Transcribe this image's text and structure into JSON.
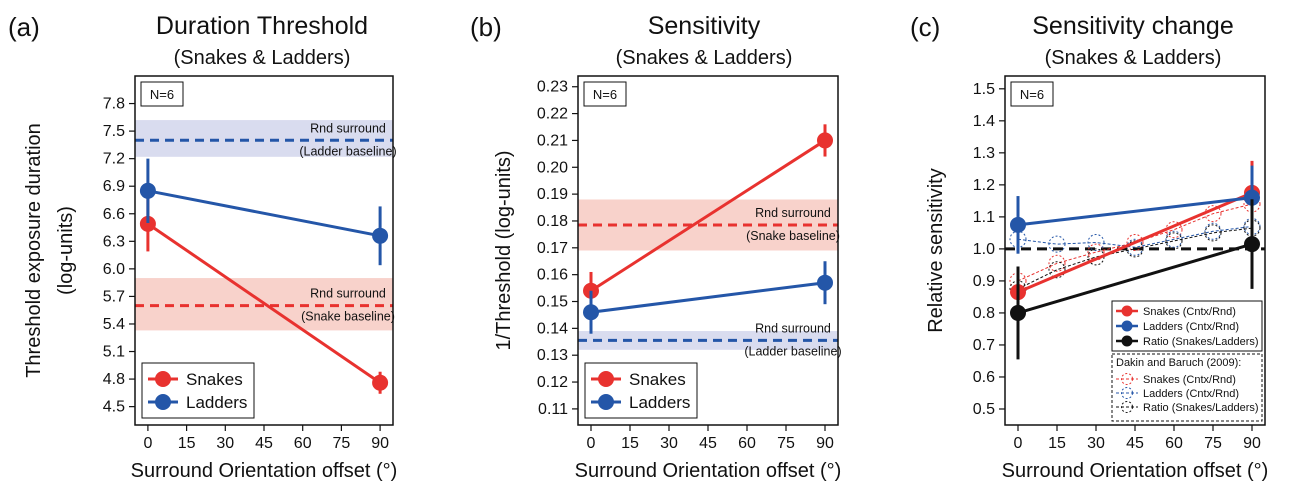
{
  "colors": {
    "red": "#e8322f",
    "blue": "#2456a8",
    "black": "#111111",
    "red_band": "#f8d2cb",
    "blue_band": "#d9dcef"
  },
  "chart_data": [
    {
      "type": "line",
      "panel_letter": "(a)",
      "title": "Duration Threshold",
      "subtitle": "(Snakes & Ladders)",
      "xlabel": "Surround Orientation offset (°)",
      "ylabel_line1": "Threshold exposure duration",
      "ylabel_line2": "(log-units)",
      "xlim": [
        -5,
        95
      ],
      "ylim": [
        4.3,
        8.1
      ],
      "x_ticks": [
        0,
        15,
        30,
        45,
        60,
        75,
        90
      ],
      "y_ticks": [
        4.5,
        4.8,
        5.1,
        5.4,
        5.7,
        6.0,
        6.3,
        6.6,
        6.9,
        7.2,
        7.5,
        7.8
      ],
      "y_decimals": 1,
      "n_label": "N=6",
      "bands": [
        {
          "color": "blue",
          "y": 7.4,
          "lo": 7.22,
          "hi": 7.62,
          "label": "Rnd surround",
          "sublabel": "(Ladder baseline)"
        },
        {
          "color": "red",
          "y": 5.6,
          "lo": 5.33,
          "hi": 5.9,
          "label": "Rnd surround",
          "sublabel": "(Snake baseline)"
        }
      ],
      "series": [
        {
          "name": "Snakes",
          "color": "red",
          "x": [
            0,
            90
          ],
          "y": [
            6.49,
            4.76
          ],
          "err": [
            0.3,
            0.12
          ]
        },
        {
          "name": "Ladders",
          "color": "blue",
          "x": [
            0,
            90
          ],
          "y": [
            6.85,
            6.36
          ],
          "err": [
            0.35,
            0.32
          ]
        }
      ],
      "legend": {
        "position": "bottom-left",
        "entries": [
          "Snakes",
          "Ladders"
        ]
      }
    },
    {
      "type": "line",
      "panel_letter": "(b)",
      "title": "Sensitivity",
      "subtitle": "(Snakes & Ladders)",
      "xlabel": "Surround Orientation offset (°)",
      "ylabel_line1": "1/Threshold (log-units)",
      "ylabel_line2": "",
      "xlim": [
        -5,
        95
      ],
      "ylim": [
        0.104,
        0.234
      ],
      "x_ticks": [
        0,
        15,
        30,
        45,
        60,
        75,
        90
      ],
      "y_ticks": [
        0.11,
        0.12,
        0.13,
        0.14,
        0.15,
        0.16,
        0.17,
        0.18,
        0.19,
        0.2,
        0.21,
        0.22,
        0.23
      ],
      "y_decimals": 2,
      "n_label": "N=6",
      "bands": [
        {
          "color": "red",
          "y": 0.1785,
          "lo": 0.169,
          "hi": 0.188,
          "label": "Rnd surround",
          "sublabel": "(Snake baseline)"
        },
        {
          "color": "blue",
          "y": 0.1355,
          "lo": 0.132,
          "hi": 0.139,
          "label": "Rnd surround",
          "sublabel": "(Ladder baseline)"
        }
      ],
      "series": [
        {
          "name": "Snakes",
          "color": "red",
          "x": [
            0,
            90
          ],
          "y": [
            0.154,
            0.21
          ],
          "err": [
            0.007,
            0.006
          ]
        },
        {
          "name": "Ladders",
          "color": "blue",
          "x": [
            0,
            90
          ],
          "y": [
            0.146,
            0.157
          ],
          "err": [
            0.008,
            0.008
          ]
        }
      ],
      "legend": {
        "position": "bottom-left",
        "entries": [
          "Snakes",
          "Ladders"
        ]
      }
    },
    {
      "type": "line",
      "panel_letter": "(c)",
      "title": "Sensitivity change",
      "subtitle": "(Snakes & Ladders)",
      "xlabel": "Surround Orientation offset (°)",
      "ylabel_line1": "Relative sensitivity",
      "ylabel_line2": "",
      "xlim": [
        -5,
        95
      ],
      "ylim": [
        0.45,
        1.54
      ],
      "x_ticks": [
        0,
        15,
        30,
        45,
        60,
        75,
        90
      ],
      "y_ticks": [
        0.5,
        0.6,
        0.7,
        0.8,
        0.9,
        1.0,
        1.1,
        1.2,
        1.3,
        1.4,
        1.5
      ],
      "y_decimals": 1,
      "n_label": "N=6",
      "reference_line": 1.0,
      "series": [
        {
          "name": "Snakes (Cntx/Rnd)",
          "color": "red",
          "x": [
            0,
            90
          ],
          "y": [
            0.865,
            1.175
          ],
          "err": [
            0.06,
            0.1
          ]
        },
        {
          "name": "Ladders (Cntx/Rnd)",
          "color": "blue",
          "x": [
            0,
            90
          ],
          "y": [
            1.075,
            1.16
          ],
          "err": [
            0.09,
            0.1
          ]
        },
        {
          "name": "Ratio (Snakes/Ladders)",
          "color": "black",
          "x": [
            0,
            90
          ],
          "y": [
            0.8,
            1.015
          ],
          "err": [
            0.145,
            0.14
          ]
        }
      ],
      "comparison_series": [
        {
          "name": "Snakes (Cntx/Rnd)",
          "color": "red",
          "x": [
            0,
            15,
            30,
            45,
            60,
            75,
            90
          ],
          "y": [
            0.9,
            0.955,
            0.99,
            1.02,
            1.06,
            1.11,
            1.14
          ]
        },
        {
          "name": "Ladders (Cntx/Rnd)",
          "color": "blue",
          "x": [
            0,
            15,
            30,
            45,
            60,
            75,
            90
          ],
          "y": [
            1.03,
            1.015,
            1.02,
            1.005,
            1.03,
            1.055,
            1.07
          ]
        },
        {
          "name": "Ratio (Snakes/Ladders)",
          "color": "black",
          "x": [
            0,
            15,
            30,
            45,
            60,
            75,
            90
          ],
          "y": [
            0.875,
            0.935,
            0.975,
            1.0,
            1.025,
            1.05,
            1.065
          ]
        }
      ],
      "legend": {
        "position": "bottom-right",
        "entries": [
          "Snakes (Cntx/Rnd)",
          "Ladders (Cntx/Rnd)",
          "Ratio (Snakes/Ladders)"
        ]
      },
      "legend2": {
        "title": "Dakin and Baruch (2009):",
        "entries": [
          "Snakes (Cntx/Rnd)",
          "Ladders (Cntx/Rnd)",
          "Ratio (Snakes/Ladders)"
        ]
      }
    }
  ]
}
